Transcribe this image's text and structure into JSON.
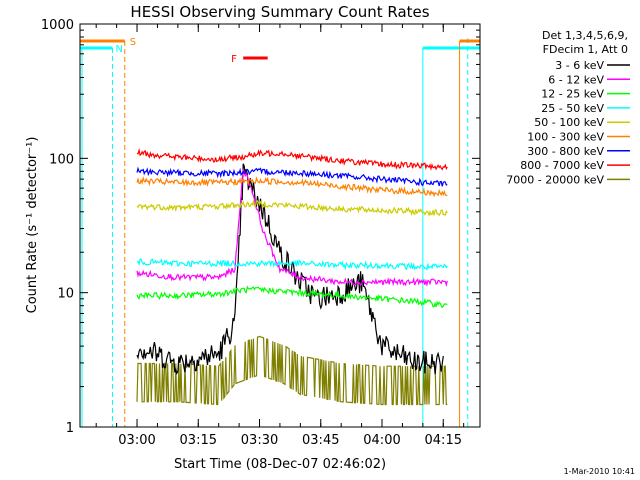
{
  "chart_data": {
    "type": "line",
    "title": "HESSI Observing Summary Count Rates",
    "xlabel": "Start Time (08-Dec-07 02:46:02)",
    "ylabel": "Count Rate (s⁻¹ detector⁻¹)",
    "x_scale": "time",
    "y_scale": "log",
    "xlim": [
      "02:46:02",
      "04:24"
    ],
    "ylim": [
      1,
      1000
    ],
    "x_ticks": [
      "03:00",
      "03:15",
      "03:30",
      "03:45",
      "04:00",
      "04:15"
    ],
    "y_ticks": [
      "1",
      "10",
      "100",
      "1000"
    ],
    "legend_header": [
      "Det 1,3,4,5,6,9,",
      "FDecim 1, Att 0"
    ],
    "legend_position": "right",
    "series": [
      {
        "name": "3 - 6 keV",
        "color": "#000000",
        "x": [
          "03:00",
          "03:10",
          "03:20",
          "03:24",
          "03:26",
          "03:28",
          "03:31",
          "03:35",
          "03:40",
          "03:44",
          "03:50",
          "03:55",
          "04:00",
          "04:08",
          "04:12",
          "04:15"
        ],
        "y": [
          4,
          3,
          3.5,
          6,
          80,
          60,
          40,
          20,
          12,
          9,
          10,
          12,
          4,
          3,
          3,
          3
        ]
      },
      {
        "name": "6 - 12 keV",
        "color": "#ff00ff",
        "x": [
          "03:00",
          "03:10",
          "03:20",
          "03:24",
          "03:26",
          "03:28",
          "03:31",
          "03:35",
          "03:40",
          "03:50",
          "04:00",
          "04:10",
          "04:16"
        ],
        "y": [
          14,
          13,
          13,
          15,
          85,
          60,
          28,
          15,
          13,
          12,
          12,
          12,
          12
        ]
      },
      {
        "name": "12 - 25 keV",
        "color": "#00ff00",
        "x": [
          "03:00",
          "03:10",
          "03:20",
          "03:26",
          "03:30",
          "03:40",
          "03:50",
          "04:00",
          "04:10",
          "04:16"
        ],
        "y": [
          9.5,
          9.5,
          9.8,
          10.5,
          10.5,
          10,
          9.5,
          9,
          8.5,
          8
        ]
      },
      {
        "name": "25 - 50 keV",
        "color": "#00ffff",
        "x": [
          "03:00",
          "03:10",
          "03:20",
          "03:30",
          "03:40",
          "03:50",
          "04:00",
          "04:10",
          "04:16"
        ],
        "y": [
          17,
          16.5,
          16.5,
          16.5,
          16.5,
          16,
          16,
          15.5,
          15.5
        ]
      },
      {
        "name": "50 - 100 keV",
        "color": "#cccc00",
        "x": [
          "03:00",
          "03:10",
          "03:20",
          "03:30",
          "03:40",
          "03:50",
          "04:00",
          "04:10",
          "04:16"
        ],
        "y": [
          44,
          43,
          44,
          46,
          44,
          42,
          41,
          40,
          39
        ]
      },
      {
        "name": "100 - 300 keV",
        "color": "#ff8000",
        "x": [
          "03:00",
          "03:10",
          "03:20",
          "03:30",
          "03:40",
          "03:50",
          "04:00",
          "04:10",
          "04:16"
        ],
        "y": [
          68,
          66,
          66,
          68,
          66,
          62,
          58,
          56,
          54
        ]
      },
      {
        "name": "300 - 800 keV",
        "color": "#0000ff",
        "x": [
          "03:00",
          "03:10",
          "03:20",
          "03:30",
          "03:40",
          "03:50",
          "04:00",
          "04:10",
          "04:16"
        ],
        "y": [
          80,
          78,
          77,
          80,
          78,
          74,
          70,
          66,
          64
        ]
      },
      {
        "name": "800 - 7000 keV",
        "color": "#ff0000",
        "x": [
          "03:00",
          "03:10",
          "03:20",
          "03:25",
          "03:30",
          "03:35",
          "03:40",
          "03:50",
          "04:00",
          "04:10",
          "04:16"
        ],
        "y": [
          110,
          102,
          98,
          102,
          108,
          110,
          104,
          96,
          90,
          88,
          86
        ]
      },
      {
        "name": "7000 - 20000 keV",
        "color": "#808000",
        "x": [
          "03:00",
          "03:10",
          "03:20",
          "03:24",
          "03:30",
          "03:36",
          "03:40",
          "03:50",
          "04:00",
          "04:10",
          "04:16"
        ],
        "y": [
          2.2,
          2.2,
          2.1,
          3,
          3.5,
          3,
          2.5,
          2.2,
          2.1,
          2.1,
          2.1
        ]
      }
    ],
    "annotations": [
      {
        "label": "S",
        "color": "#ff8000"
      },
      {
        "label": "N",
        "color": "#00ffff"
      },
      {
        "label": "F",
        "color": "#ff0000"
      }
    ],
    "footer_date": "1-Mar-2010 10:41"
  }
}
